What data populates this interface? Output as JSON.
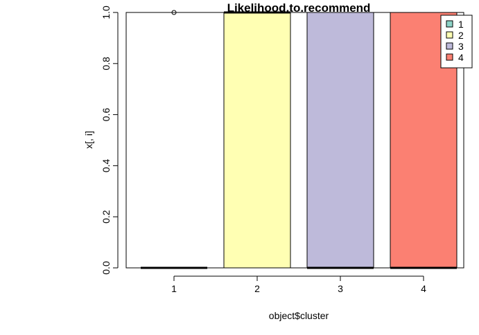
{
  "chart_data": {
    "type": "boxplot",
    "title": "Likelihood.to.recommend",
    "xlabel": "object$cluster",
    "ylabel": "x[, i]",
    "ylim": [
      0,
      1
    ],
    "yticks": [
      "0.0",
      "0.2",
      "0.4",
      "0.6",
      "0.8",
      "1.0"
    ],
    "categories": [
      "1",
      "2",
      "3",
      "4"
    ],
    "boxes": [
      {
        "category": "1",
        "q1": 0,
        "median": 0,
        "q3": 0,
        "outliers": [
          1
        ],
        "color": "#8DD3C7"
      },
      {
        "category": "2",
        "q1": 0,
        "median": 1,
        "q3": 1,
        "outliers": [],
        "color": "#FFFFB3"
      },
      {
        "category": "3",
        "q1": 0,
        "median": 0,
        "q3": 1,
        "outliers": [],
        "color": "#BEBADA"
      },
      {
        "category": "4",
        "q1": 0,
        "median": 0,
        "q3": 1,
        "outliers": [],
        "color": "#FB8072"
      }
    ],
    "legend": {
      "position": "top-right",
      "items": [
        {
          "label": "1",
          "color": "#8DD3C7"
        },
        {
          "label": "2",
          "color": "#FFFFB3"
        },
        {
          "label": "3",
          "color": "#BEBADA"
        },
        {
          "label": "4",
          "color": "#FB8072"
        }
      ]
    }
  }
}
